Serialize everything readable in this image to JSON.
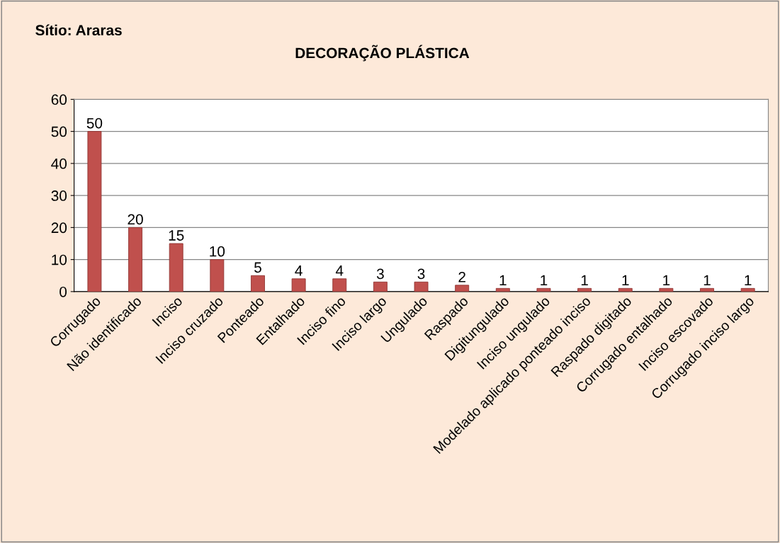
{
  "chart_data": {
    "type": "bar",
    "title": "DECORAÇÃO PLÁSTICA",
    "subtitle": "Sítio: Araras",
    "categories": [
      "Corrugado",
      "Não identificado",
      "Inciso",
      "Inciso cruzado",
      "Ponteado",
      "Entalhado",
      "Inciso fino",
      "Inciso largo",
      "Ungulado",
      "Raspado",
      "Digitungulado",
      "Inciso ungulado",
      "Modelado aplicado ponteado inciso",
      "Raspado digitado",
      "Corrugado entalhado",
      "Inciso escovado",
      "Corrugado inciso largo"
    ],
    "values": [
      50,
      20,
      15,
      10,
      5,
      4,
      4,
      3,
      3,
      2,
      1,
      1,
      1,
      1,
      1,
      1,
      1
    ],
    "color": "#c0504d",
    "ylim": [
      0,
      60
    ],
    "yticks": [
      0,
      10,
      20,
      30,
      40,
      50,
      60
    ],
    "grid": "y",
    "data_labels": true
  }
}
